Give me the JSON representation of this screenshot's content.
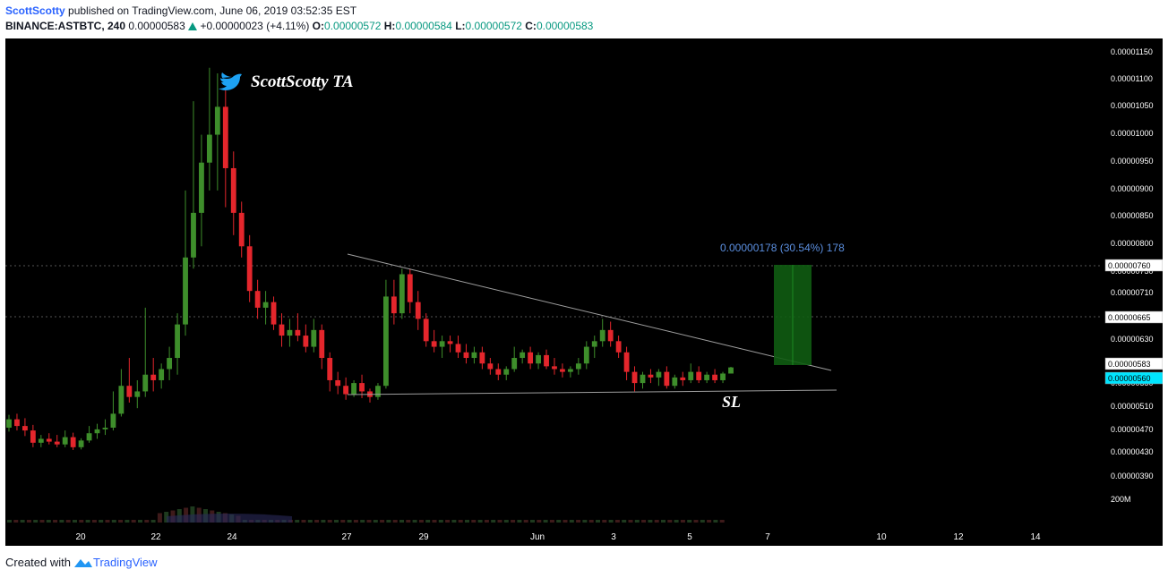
{
  "header": {
    "author": "ScottScotty",
    "published_text": "published on TradingView.com, June 06, 2019 03:52:35 EST",
    "symbol": "BINANCE:ASTBTC, 240",
    "last": "0.00000583",
    "change": "+0.00000023 (+4.11%)",
    "o_label": "O:",
    "o_value": "0.00000572",
    "h_label": "H:",
    "h_value": "0.00000584",
    "l_label": "L:",
    "l_value": "0.00000572",
    "c_label": "C:",
    "c_value": "0.00000583"
  },
  "footer": {
    "created_with": "Created with",
    "brand": "TradingView"
  },
  "chart_data": {
    "type": "candlestick",
    "background": "#000000",
    "up_color": "#3e8e2b",
    "down_color": "#e4262c",
    "y_axis_labels": [
      "0.00001150",
      "0.00001100",
      "0.00001050",
      "0.00001000",
      "0.00000950",
      "0.00000900",
      "0.00000850",
      "0.00000800",
      "0.00000750",
      "0.00000710",
      "0.00000665",
      "0.00000630",
      "0.00000583",
      "0.00000550",
      "0.00000510",
      "0.00000470",
      "0.00000430",
      "0.00000390"
    ],
    "price_tags": [
      {
        "value": "0.00000760",
        "style": "white"
      },
      {
        "value": "0.00000665",
        "style": "white"
      },
      {
        "value": "0.00000583",
        "style": "white"
      },
      {
        "value": "0.00000560",
        "style": "cyan"
      }
    ],
    "volume_label": "200M",
    "x_axis_labels": [
      "20",
      "22",
      "24",
      "27",
      "29",
      "Jun",
      "3",
      "5",
      "7",
      "10",
      "12",
      "14"
    ],
    "watermark": "ScottScotty TA",
    "annotations": {
      "measure_label": "0.00000178 (30.54%) 178",
      "stop_label": "SL"
    },
    "candles_ohlc": [
      [
        4.75e-06,
        4.98e-06,
        4.68e-06,
        4.9e-06
      ],
      [
        4.9e-06,
        5e-06,
        4.7e-06,
        4.78e-06
      ],
      [
        4.78e-06,
        4.92e-06,
        4.6e-06,
        4.7e-06
      ],
      [
        4.7e-06,
        4.8e-06,
        4.4e-06,
        4.48e-06
      ],
      [
        4.48e-06,
        4.62e-06,
        4.4e-06,
        4.55e-06
      ],
      [
        4.55e-06,
        4.65e-06,
        4.45e-06,
        4.5e-06
      ],
      [
        4.5e-06,
        4.62e-06,
        4.4e-06,
        4.45e-06
      ],
      [
        4.45e-06,
        4.7e-06,
        4.4e-06,
        4.58e-06
      ],
      [
        4.58e-06,
        4.66e-06,
        4.35e-06,
        4.4e-06
      ],
      [
        4.4e-06,
        4.56e-06,
        4.36e-06,
        4.52e-06
      ],
      [
        4.52e-06,
        4.78e-06,
        4.48e-06,
        4.65e-06
      ],
      [
        4.65e-06,
        4.82e-06,
        4.55e-06,
        4.72e-06
      ],
      [
        4.72e-06,
        4.9e-06,
        4.62e-06,
        4.75e-06
      ],
      [
        4.75e-06,
        5.4e-06,
        4.7e-06,
        5e-06
      ],
      [
        5e-06,
        5.8e-06,
        4.95e-06,
        5.5e-06
      ],
      [
        5.5e-06,
        6e-06,
        5.2e-06,
        5.3e-06
      ],
      [
        5.3e-06,
        5.6e-06,
        5.1e-06,
        5.4e-06
      ],
      [
        5.4e-06,
        6.9e-06,
        5.3e-06,
        5.7e-06
      ],
      [
        5.7e-06,
        6e-06,
        5.4e-06,
        5.6e-06
      ],
      [
        5.6e-06,
        5.9e-06,
        5.45e-06,
        5.8e-06
      ],
      [
        5.8e-06,
        6.2e-06,
        5.6e-06,
        6e-06
      ],
      [
        6e-06,
        6.8e-06,
        5.7e-06,
        6.6e-06
      ],
      [
        6.6e-06,
        9e-06,
        6.4e-06,
        7.8e-06
      ],
      [
        7.8e-06,
        1.06e-05,
        7.6e-06,
        8.6e-06
      ],
      [
        8.6e-06,
        1e-05,
        8e-06,
        9.5e-06
      ],
      [
        9.5e-06,
        1.12e-05,
        9e-06,
        1e-05
      ],
      [
        1e-05,
        1.11e-05,
        9e-06,
        1.05e-05
      ],
      [
        1.05e-05,
        1.08e-05,
        8.7e-06,
        9.4e-06
      ],
      [
        9.4e-06,
        9.7e-06,
        8.2e-06,
        8.6e-06
      ],
      [
        8.6e-06,
        8.8e-06,
        7.8e-06,
        8e-06
      ],
      [
        8e-06,
        8.2e-06,
        7e-06,
        7.2e-06
      ],
      [
        7.2e-06,
        7.4e-06,
        6.7e-06,
        6.9e-06
      ],
      [
        6.9e-06,
        7.2e-06,
        6.6e-06,
        7e-06
      ],
      [
        7e-06,
        7.1e-06,
        6.5e-06,
        6.6e-06
      ],
      [
        6.6e-06,
        6.8e-06,
        6.2e-06,
        6.4e-06
      ],
      [
        6.4e-06,
        6.7e-06,
        6.2e-06,
        6.5e-06
      ],
      [
        6.5e-06,
        6.8e-06,
        6.3e-06,
        6.4e-06
      ],
      [
        6.4e-06,
        6.6e-06,
        6.1e-06,
        6.2e-06
      ],
      [
        6.2e-06,
        6.7e-06,
        6.1e-06,
        6.5e-06
      ],
      [
        6.5e-06,
        6.6e-06,
        5.8e-06,
        6e-06
      ],
      [
        6e-06,
        6.1e-06,
        5.4e-06,
        5.6e-06
      ],
      [
        5.6e-06,
        5.75e-06,
        5.35e-06,
        5.5e-06
      ],
      [
        5.5e-06,
        5.65e-06,
        5.25e-06,
        5.35e-06
      ],
      [
        5.35e-06,
        5.6e-06,
        5.3e-06,
        5.55e-06
      ],
      [
        5.55e-06,
        5.7e-06,
        5.28e-06,
        5.4e-06
      ],
      [
        5.4e-06,
        5.45e-06,
        5.2e-06,
        5.3e-06
      ],
      [
        5.3e-06,
        5.55e-06,
        5.25e-06,
        5.5e-06
      ],
      [
        5.5e-06,
        7.4e-06,
        5.45e-06,
        7.1e-06
      ],
      [
        7.1e-06,
        7.4e-06,
        6.6e-06,
        6.8e-06
      ],
      [
        6.8e-06,
        7.6e-06,
        6.7e-06,
        7.5e-06
      ],
      [
        7.5e-06,
        7.6e-06,
        6.8e-06,
        7e-06
      ],
      [
        7e-06,
        7.2e-06,
        6.5e-06,
        6.7e-06
      ],
      [
        6.7e-06,
        6.8e-06,
        6.2e-06,
        6.3e-06
      ],
      [
        6.3e-06,
        6.5e-06,
        6.1e-06,
        6.2e-06
      ],
      [
        6.2e-06,
        6.4e-06,
        6e-06,
        6.3e-06
      ],
      [
        6.3e-06,
        6.4e-06,
        6.1e-06,
        6.25e-06
      ],
      [
        6.25e-06,
        6.4e-06,
        6e-06,
        6.1e-06
      ],
      [
        6.1e-06,
        6.25e-06,
        5.9e-06,
        6e-06
      ],
      [
        6e-06,
        6.2e-06,
        5.9e-06,
        6.1e-06
      ],
      [
        6.1e-06,
        6.2e-06,
        5.8e-06,
        5.9e-06
      ],
      [
        5.9e-06,
        6e-06,
        5.7e-06,
        5.8e-06
      ],
      [
        5.8e-06,
        5.9e-06,
        5.6e-06,
        5.7e-06
      ],
      [
        5.7e-06,
        5.85e-06,
        5.6e-06,
        5.8e-06
      ],
      [
        5.8e-06,
        6.2e-06,
        5.75e-06,
        6e-06
      ],
      [
        6e-06,
        6.15e-06,
        5.9e-06,
        6.1e-06
      ],
      [
        6.1e-06,
        6.2e-06,
        5.8e-06,
        5.9e-06
      ],
      [
        5.9e-06,
        6.1e-06,
        5.8e-06,
        6.05e-06
      ],
      [
        6.05e-06,
        6.15e-06,
        5.8e-06,
        5.85e-06
      ],
      [
        5.85e-06,
        6e-06,
        5.7e-06,
        5.8e-06
      ],
      [
        5.8e-06,
        5.9e-06,
        5.65e-06,
        5.75e-06
      ],
      [
        5.75e-06,
        5.85e-06,
        5.65e-06,
        5.8e-06
      ],
      [
        5.8e-06,
        6e-06,
        5.7e-06,
        5.9e-06
      ],
      [
        5.9e-06,
        6.3e-06,
        5.8e-06,
        6.2e-06
      ],
      [
        6.2e-06,
        6.4e-06,
        6e-06,
        6.3e-06
      ],
      [
        6.3e-06,
        6.7e-06,
        6.2e-06,
        6.5e-06
      ],
      [
        6.5e-06,
        6.65e-06,
        6.2e-06,
        6.3e-06
      ],
      [
        6.3e-06,
        6.4e-06,
        6e-06,
        6.1e-06
      ],
      [
        6.1e-06,
        6.2e-06,
        5.6e-06,
        5.75e-06
      ],
      [
        5.75e-06,
        5.85e-06,
        5.4e-06,
        5.55e-06
      ],
      [
        5.55e-06,
        5.75e-06,
        5.45e-06,
        5.7e-06
      ],
      [
        5.7e-06,
        5.8e-06,
        5.55e-06,
        5.65e-06
      ],
      [
        5.65e-06,
        5.8e-06,
        5.5e-06,
        5.75e-06
      ],
      [
        5.75e-06,
        5.85e-06,
        5.45e-06,
        5.5e-06
      ],
      [
        5.5e-06,
        5.7e-06,
        5.45e-06,
        5.65e-06
      ],
      [
        5.65e-06,
        5.75e-06,
        5.5e-06,
        5.6e-06
      ],
      [
        5.6e-06,
        5.9e-06,
        5.55e-06,
        5.75e-06
      ],
      [
        5.75e-06,
        5.85e-06,
        5.55e-06,
        5.6e-06
      ],
      [
        5.6e-06,
        5.75e-06,
        5.55e-06,
        5.7e-06
      ],
      [
        5.7e-06,
        5.8e-06,
        5.55e-06,
        5.6e-06
      ],
      [
        5.6e-06,
        5.75e-06,
        5.55e-06,
        5.72e-06
      ],
      [
        5.72e-06,
        5.84e-06,
        5.72e-06,
        5.83e-06
      ]
    ]
  }
}
